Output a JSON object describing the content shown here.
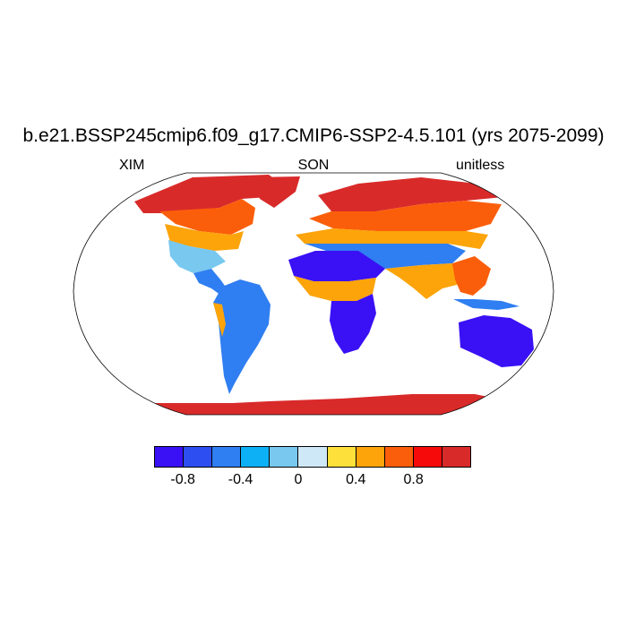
{
  "title": "b.e21.BSSP245cmip6.f09_g17.CMIP6-SSP2-4.5.101 (yrs 2075-2099)",
  "left_label": "XIM",
  "center_label": "SON",
  "right_label": "unitless",
  "colorbar": {
    "colors": [
      "#3a10f5",
      "#2d4ef0",
      "#2f7ef2",
      "#0db0f5",
      "#78c8f0",
      "#cfe8f8",
      "#fde03a",
      "#fca40a",
      "#fb5e0a",
      "#f70a0a",
      "#d92a2a"
    ],
    "ticks": [
      "-0.8",
      "-0.4",
      "0",
      "0.4",
      "0.8"
    ]
  },
  "map": {
    "projection": "Robinson",
    "land_colors": {
      "high_latitude": "#d92a2a",
      "arctic_fringe": "#f70a0a",
      "boreal": "#fb5e0a",
      "temperate": "#fca40a",
      "mid": "#78c8f0",
      "tropical": "#2f7ef2",
      "desert": "#3a10f5"
    }
  }
}
